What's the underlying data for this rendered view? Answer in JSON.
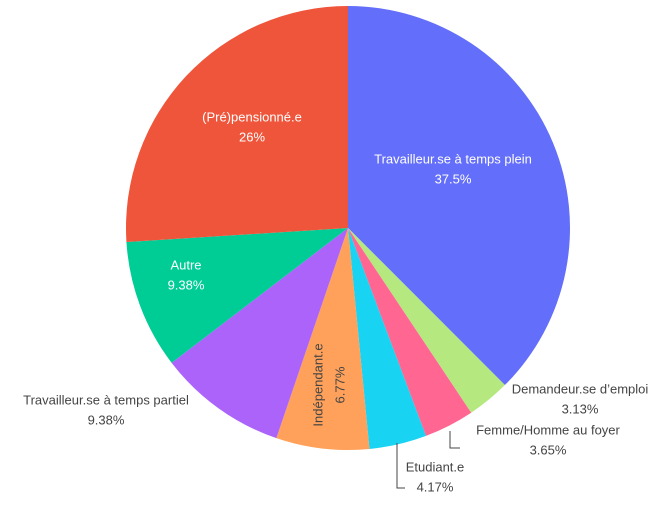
{
  "chart_data": {
    "type": "pie",
    "categories": [
      "Travailleur.se à temps plein",
      "Demandeur.se d’emploi",
      "Femme/Homme au foyer",
      "Etudiant.e",
      "Indépendant.e",
      "Travailleur.se à temps partiel",
      "Autre",
      "(Pré)pensionné.e"
    ],
    "values": [
      37.5,
      3.13,
      3.65,
      4.17,
      6.77,
      9.38,
      9.38,
      26
    ],
    "value_labels": [
      "37.5%",
      "3.13%",
      "3.65%",
      "4.17%",
      "6.77%",
      "9.38%",
      "9.38%",
      "26%"
    ],
    "colors": [
      "#636efa",
      "#b6e880",
      "#ff6692",
      "#19d3f3",
      "#ffa15a",
      "#ab63fa",
      "#00cc96",
      "#ef553b"
    ]
  }
}
